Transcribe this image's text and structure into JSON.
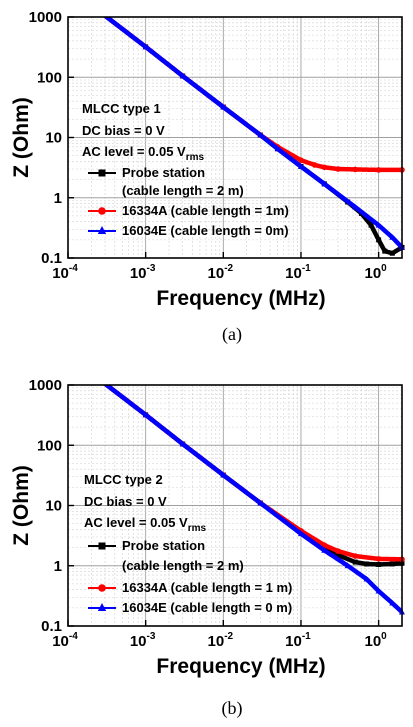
{
  "chart_data": [
    {
      "type": "line",
      "caption": "(a)",
      "xlabel": "Frequency (MHz)",
      "ylabel": "Z (Ohm)",
      "xscale": "log",
      "yscale": "log",
      "xlim": [
        0.0001,
        2
      ],
      "ylim": [
        0.1,
        1000
      ],
      "grid": true,
      "x_ticks": [
        {
          "value": 0.0001,
          "base": "10",
          "exp": "-4"
        },
        {
          "value": 0.001,
          "base": "10",
          "exp": "-3"
        },
        {
          "value": 0.01,
          "base": "10",
          "exp": "-2"
        },
        {
          "value": 0.1,
          "base": "10",
          "exp": "-1"
        },
        {
          "value": 1,
          "base": "10",
          "exp": "0"
        }
      ],
      "y_ticks": [
        {
          "value": 0.1,
          "label": "0.1"
        },
        {
          "value": 1,
          "label": "1"
        },
        {
          "value": 10,
          "label": "10"
        },
        {
          "value": 100,
          "label": "100"
        },
        {
          "value": 1000,
          "label": "1000"
        }
      ],
      "annotation": [
        {
          "text": "MLCC type 1"
        },
        {
          "text": "DC bias = 0 V"
        },
        {
          "text": "AC level = 0.05 V",
          "sub": "rms"
        }
      ],
      "legend_position": "lower-left",
      "series": [
        {
          "name": "Probe station",
          "name_line2": "(cable length = 2 m)",
          "color": "#000000",
          "marker": "square",
          "x": [
            0.0003,
            0.001,
            0.003,
            0.01,
            0.03,
            0.05,
            0.1,
            0.2,
            0.4,
            0.6,
            0.8,
            1.0,
            1.2,
            1.5,
            2.0
          ],
          "y": [
            1050,
            320,
            105,
            32,
            11,
            6.5,
            3.3,
            1.7,
            0.85,
            0.55,
            0.35,
            0.2,
            0.13,
            0.12,
            0.15
          ]
        },
        {
          "name": "16334A (cable length = 1m)",
          "color": "#ff0000",
          "marker": "circle",
          "x": [
            0.0003,
            0.001,
            0.003,
            0.01,
            0.03,
            0.05,
            0.1,
            0.15,
            0.2,
            0.3,
            0.5,
            1.0,
            2.0
          ],
          "y": [
            1050,
            320,
            105,
            32,
            11,
            7,
            4.2,
            3.5,
            3.2,
            3.0,
            2.95,
            2.9,
            2.9
          ]
        },
        {
          "name": "16034E (cable length = 0m)",
          "color": "#0000ff",
          "marker": "triangle",
          "x": [
            0.0003,
            0.001,
            0.003,
            0.01,
            0.03,
            0.05,
            0.1,
            0.2,
            0.5,
            1.0,
            1.5,
            2.0
          ],
          "y": [
            1050,
            320,
            105,
            32,
            11,
            6.5,
            3.3,
            1.7,
            0.7,
            0.35,
            0.22,
            0.15
          ]
        }
      ]
    },
    {
      "type": "line",
      "caption": "(b)",
      "xlabel": "Frequency (MHz)",
      "ylabel": "Z (Ohm)",
      "xscale": "log",
      "yscale": "log",
      "xlim": [
        0.0001,
        2
      ],
      "ylim": [
        0.1,
        1000
      ],
      "grid": true,
      "x_ticks": [
        {
          "value": 0.0001,
          "base": "10",
          "exp": "-4"
        },
        {
          "value": 0.001,
          "base": "10",
          "exp": "-3"
        },
        {
          "value": 0.01,
          "base": "10",
          "exp": "-2"
        },
        {
          "value": 0.1,
          "base": "10",
          "exp": "-1"
        },
        {
          "value": 1,
          "base": "10",
          "exp": "0"
        }
      ],
      "y_ticks": [
        {
          "value": 0.1,
          "label": "0.1"
        },
        {
          "value": 1,
          "label": "1"
        },
        {
          "value": 10,
          "label": "10"
        },
        {
          "value": 100,
          "label": "100"
        },
        {
          "value": 1000,
          "label": "1000"
        }
      ],
      "annotation": [
        {
          "text": "MLCC type 2"
        },
        {
          "text": "DC bias = 0 V"
        },
        {
          "text": "AC level = 0.05 V",
          "sub": "rms"
        }
      ],
      "legend_position": "lower-left",
      "series": [
        {
          "name": "Probe station",
          "name_line2": "(cable length = 2 m)",
          "color": "#000000",
          "marker": "square",
          "x": [
            0.0003,
            0.001,
            0.003,
            0.01,
            0.03,
            0.1,
            0.2,
            0.3,
            0.5,
            0.7,
            1.0,
            1.5,
            2.0
          ],
          "y": [
            1050,
            320,
            105,
            32,
            11,
            3.7,
            2.0,
            1.5,
            1.15,
            1.07,
            1.05,
            1.07,
            1.1
          ]
        },
        {
          "name": "16334A (cable length = 1 m)",
          "color": "#ff0000",
          "marker": "circle",
          "x": [
            0.0003,
            0.001,
            0.003,
            0.01,
            0.03,
            0.1,
            0.2,
            0.3,
            0.5,
            1.0,
            2.0
          ],
          "y": [
            1050,
            320,
            105,
            32,
            11,
            3.8,
            2.2,
            1.75,
            1.45,
            1.3,
            1.28
          ]
        },
        {
          "name": "16034E (cable length = 0 m)",
          "color": "#0000ff",
          "marker": "triangle",
          "x": [
            0.0003,
            0.001,
            0.003,
            0.01,
            0.03,
            0.1,
            0.2,
            0.4,
            0.7,
            1.0,
            1.5,
            2.0
          ],
          "y": [
            1050,
            320,
            105,
            32,
            11,
            3.4,
            1.8,
            1.0,
            0.6,
            0.38,
            0.24,
            0.17
          ]
        }
      ]
    }
  ]
}
